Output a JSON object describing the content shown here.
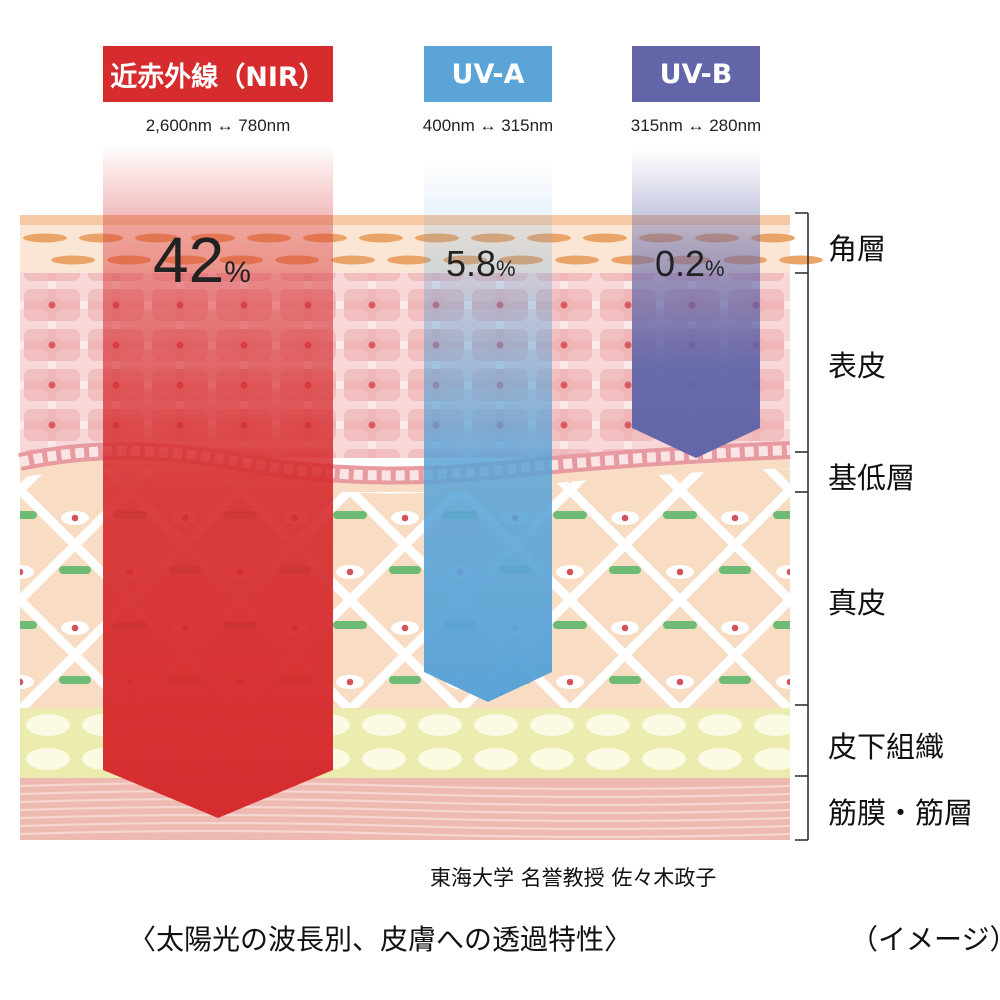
{
  "bands": [
    {
      "label": "近赤外線（NIR）",
      "range": "2,600nm ↔ 780nm",
      "percent": "42",
      "unit": "%",
      "color": "#d62c2e"
    },
    {
      "label": "UV-A",
      "range": "400nm ↔ 315nm",
      "percent": "5.8",
      "unit": "%",
      "color": "#5ba4d7"
    },
    {
      "label": "UV-B",
      "range": "315nm ↔ 280nm",
      "percent": "0.2",
      "unit": "%",
      "color": "#6266a8"
    }
  ],
  "layers": [
    {
      "name": "角層"
    },
    {
      "name": "表皮"
    },
    {
      "name": "基低層"
    },
    {
      "name": "真皮"
    },
    {
      "name": "皮下組織"
    },
    {
      "name": "筋膜・筋層"
    }
  ],
  "credit": "東海大学 名誉教授 佐々木政子",
  "caption": "〈太陽光の波長別、皮膚への透過特性〉",
  "note": "（イメージ）",
  "colors": {
    "nir": "#d62c2e",
    "uva": "#5ba4d7",
    "uvb": "#6266a8",
    "dermis": "#f8dcc3",
    "epidermis": "#f6dcdc",
    "fat": "#ecebb0",
    "muscle": "#e8a9a0"
  }
}
